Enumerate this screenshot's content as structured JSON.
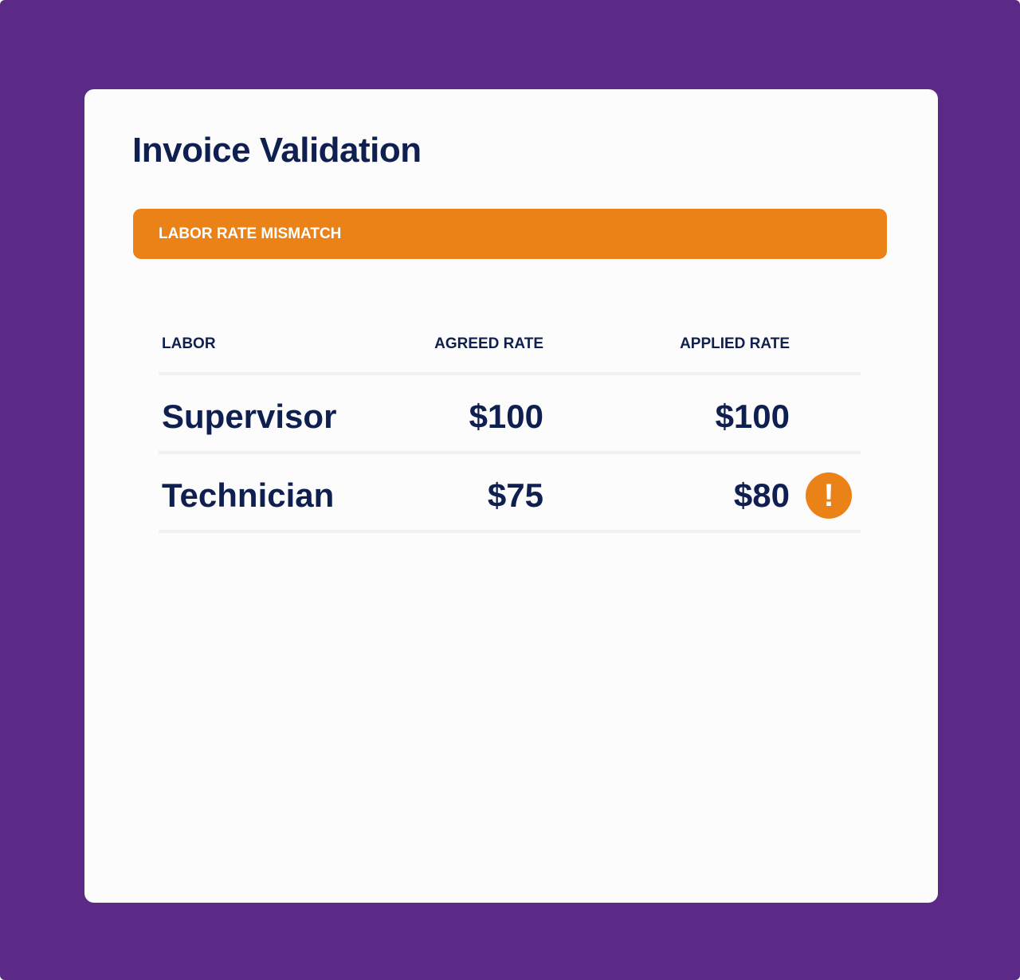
{
  "header": {
    "title": "Invoice Validation"
  },
  "alert": {
    "label": "LABOR RATE MISMATCH"
  },
  "table": {
    "columns": [
      "LABOR",
      "AGREED RATE",
      "APPLIED RATE"
    ],
    "rows": [
      {
        "cells": [
          "Supervisor",
          "$100",
          "$100"
        ]
      },
      {
        "cells": [
          "Technician",
          "$75",
          "$80"
        ],
        "flag": "!"
      }
    ]
  }
}
